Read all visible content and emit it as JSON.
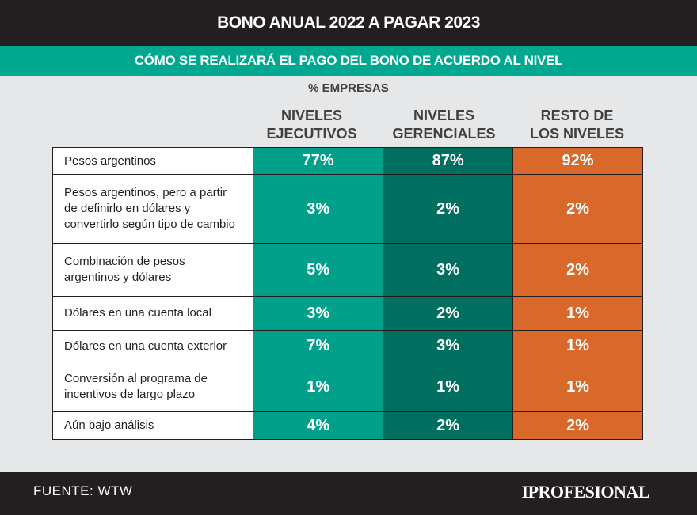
{
  "title": "BONO ANUAL 2022 A PAGAR 2023",
  "subtitle": "CÓMO SE REALIZARÁ EL PAGO DEL BONO DE ACUERDO AL NIVEL",
  "unit": "% EMPRESAS",
  "colors": {
    "ejecutivos": "#00a08a",
    "gerenciales": "#006f5f",
    "resto": "#d8692a"
  },
  "chart_data": {
    "type": "table",
    "columns": [
      {
        "line1": "NIVELES",
        "line2": "EJECUTIVOS"
      },
      {
        "line1": "NIVELES",
        "line2": "GERENCIALES"
      },
      {
        "line1": "RESTO DE",
        "line2": "LOS NIVELES"
      }
    ],
    "rows": [
      {
        "label": [
          "Pesos argentinos"
        ],
        "values": [
          "77%",
          "87%",
          "92%"
        ]
      },
      {
        "label": [
          "Pesos argentinos, pero a partir",
          "de definirlo en dólares y",
          "convertirlo según tipo de cambio"
        ],
        "values": [
          "3%",
          "2%",
          "2%"
        ]
      },
      {
        "label": [
          "Combinación de pesos",
          "argentinos y dólares"
        ],
        "values": [
          "5%",
          "3%",
          "2%"
        ]
      },
      {
        "label": [
          "Dólares en una cuenta local"
        ],
        "values": [
          "3%",
          "2%",
          "1%"
        ]
      },
      {
        "label": [
          "Dólares en una cuenta exterior"
        ],
        "values": [
          "7%",
          "3%",
          "1%"
        ]
      },
      {
        "label": [
          "Conversión al programa de",
          "incentivos de largo plazo"
        ],
        "values": [
          "1%",
          "1%",
          "1%"
        ]
      },
      {
        "label": [
          "Aún bajo análisis"
        ],
        "values": [
          "4%",
          "2%",
          "2%"
        ]
      }
    ]
  },
  "footer": {
    "source": "FUENTE: WTW",
    "logo": "IPROFESIONAL"
  }
}
